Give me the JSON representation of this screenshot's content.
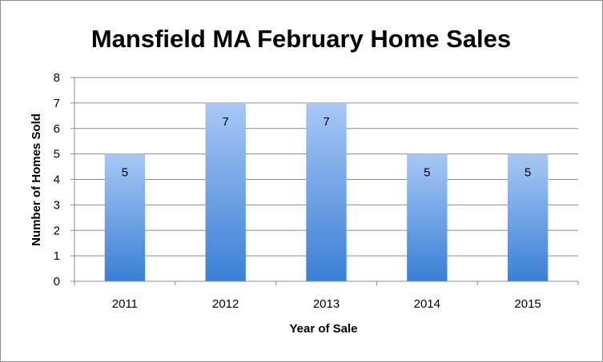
{
  "chart_data": {
    "type": "bar",
    "title": "Mansfield MA February Home Sales",
    "xlabel": "Year of Sale",
    "ylabel": "Number of Homes Sold",
    "categories": [
      "2011",
      "2012",
      "2013",
      "2014",
      "2015"
    ],
    "values": [
      5,
      7,
      7,
      5,
      5
    ],
    "ylim": [
      0,
      8
    ],
    "yticks": [
      0,
      1,
      2,
      3,
      4,
      5,
      6,
      7,
      8
    ],
    "grid": true,
    "legend": "none",
    "data_labels": true,
    "colors": {
      "bar_top": "#a8c8f5",
      "bar_bottom": "#3a7fd6",
      "grid": "#8c8c8c",
      "axis": "#8c8c8c"
    }
  }
}
